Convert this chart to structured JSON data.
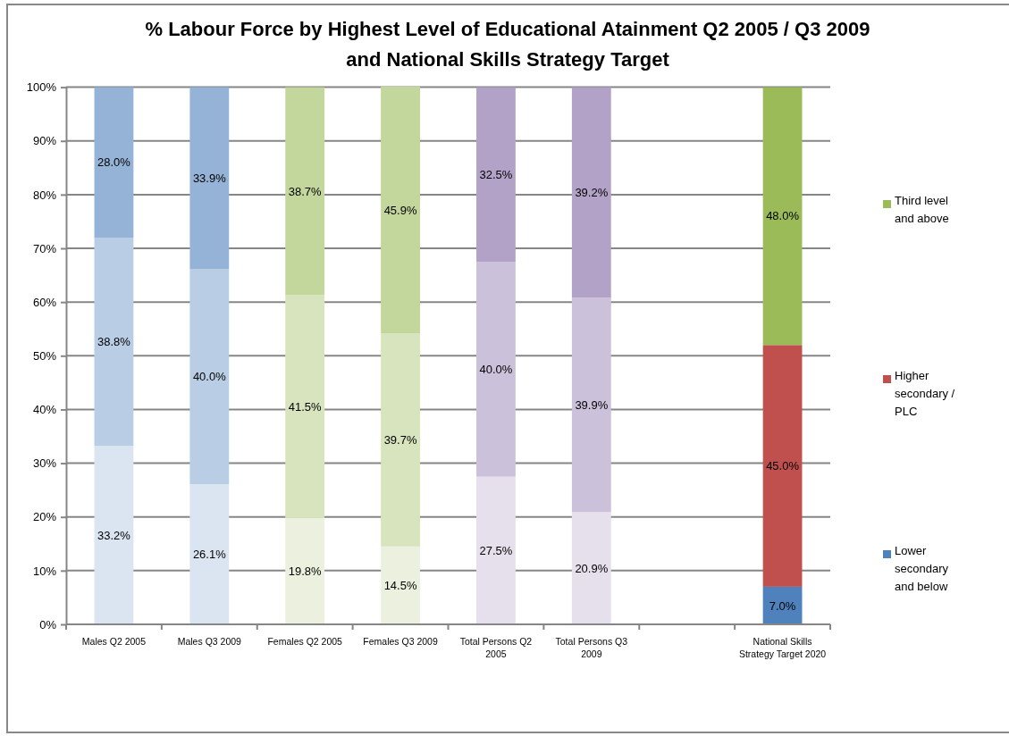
{
  "chart_data": {
    "type": "bar",
    "stacked": true,
    "title": "% Labour Force by Highest Level of Educational Atainment Q2 2005 / Q3 2009 and National Skills Strategy Target",
    "categories": [
      "Males Q2 2005",
      "Males Q3 2009",
      "Females Q2 2005",
      "Females Q3 2009",
      "Total Persons Q2 2005",
      "Total Persons Q3 2009",
      null,
      "National Skills Strategy Target 2020"
    ],
    "series": [
      {
        "name": "Lower secondary and below",
        "color": "#4f81bd",
        "colors": [
          "#dbe5f1",
          "#dbe5f1",
          "#ebf1de",
          "#ebf1de",
          "#e6e0ec",
          "#e6e0ec",
          null,
          "#4f81bd"
        ],
        "values": [
          33.2,
          26.1,
          19.8,
          14.5,
          27.5,
          20.9,
          null,
          7.0
        ],
        "value_labels": [
          "33.2%",
          "26.1%",
          "19.8%",
          "14.5%",
          "27.5%",
          "20.9%",
          null,
          "7.0%"
        ]
      },
      {
        "name": "Higher secondary / PLC",
        "color": "#c0504d",
        "colors": [
          "#b9cde5",
          "#b9cde5",
          "#d7e4bd",
          "#d7e4bd",
          "#ccc1da",
          "#ccc1da",
          null,
          "#c0504d"
        ],
        "values": [
          38.8,
          40.0,
          41.5,
          39.7,
          40.0,
          39.9,
          null,
          45.0
        ],
        "value_labels": [
          "38.8%",
          "40.0%",
          "41.5%",
          "39.7%",
          "40.0%",
          "39.9%",
          null,
          "45.0%"
        ]
      },
      {
        "name": "Third level and above",
        "color": "#9bbb59",
        "colors": [
          "#95b3d7",
          "#95b3d7",
          "#c3d69b",
          "#c3d69b",
          "#b3a2c7",
          "#b3a2c7",
          null,
          "#9bbb59"
        ],
        "values": [
          28.0,
          33.9,
          38.7,
          45.9,
          32.5,
          39.2,
          null,
          48.0
        ],
        "value_labels": [
          "28.0%",
          "33.9%",
          "38.7%",
          "45.9%",
          "32.5%",
          "39.2%",
          null,
          "48.0%"
        ]
      }
    ],
    "ylim": [
      0,
      100.1
    ],
    "yticks": [
      {
        "value": 0,
        "label": "0%"
      },
      {
        "value": 10,
        "label": "10%"
      },
      {
        "value": 20,
        "label": "20%"
      },
      {
        "value": 30,
        "label": "30%"
      },
      {
        "value": 40,
        "label": "40%"
      },
      {
        "value": 50,
        "label": "50%"
      },
      {
        "value": 60,
        "label": "60%"
      },
      {
        "value": 70,
        "label": "70%"
      },
      {
        "value": 80,
        "label": "80%"
      },
      {
        "value": 90,
        "label": "90%"
      },
      {
        "value": 100,
        "label": "100%"
      }
    ],
    "grid": "y",
    "legend": "right"
  }
}
